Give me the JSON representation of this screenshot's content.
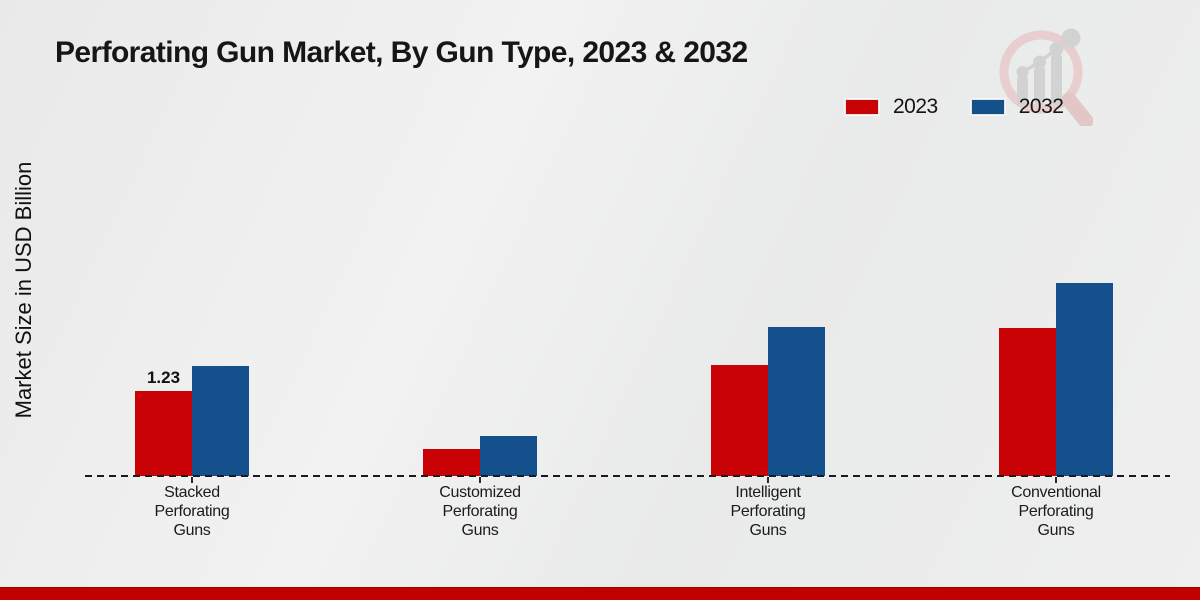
{
  "title": "Perforating Gun Market, By Gun Type, 2023 & 2032",
  "watermark_icon": "magnifier-growth-chart-logo",
  "chart_data": {
    "type": "bar",
    "title": "Perforating Gun Market, By Gun Type, 2023 & 2032",
    "xlabel": "",
    "ylabel": "Market Size in USD Billion",
    "categories": [
      "Stacked Perforating Guns",
      "Customized Perforating Guns",
      "Intelligent Perforating Guns",
      "Conventional Perforating Guns"
    ],
    "categories_lines": [
      [
        "Stacked",
        "Perforating",
        "Guns"
      ],
      [
        "Customized",
        "Perforating",
        "Guns"
      ],
      [
        "Intelligent",
        "Perforating",
        "Guns"
      ],
      [
        "Conventional",
        "Perforating",
        "Guns"
      ]
    ],
    "series": [
      {
        "name": "2023",
        "color": "#c90305",
        "values": [
          1.23,
          0.39,
          1.61,
          2.14
        ]
      },
      {
        "name": "2032",
        "color": "#14508c",
        "values": [
          1.59,
          0.58,
          2.16,
          2.8
        ]
      }
    ],
    "data_labels": [
      {
        "series": 0,
        "category": 0,
        "text": "1.23"
      }
    ],
    "ylim": [
      0,
      3.5
    ],
    "grid": false,
    "legend_position": "top-right",
    "x_axis_style": "dashed",
    "colors": {
      "accent_red": "#c90305",
      "accent_blue": "#14508c",
      "footer_band": "#c10000"
    }
  }
}
